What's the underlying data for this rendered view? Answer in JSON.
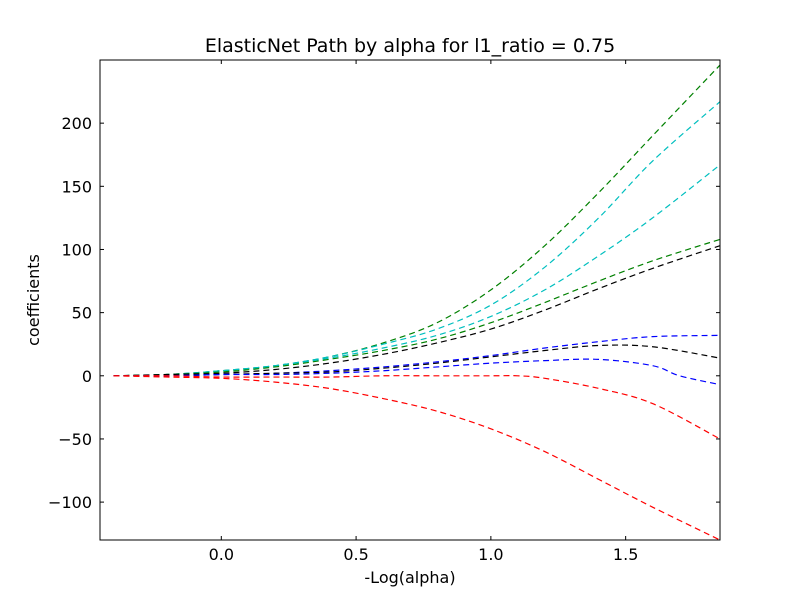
{
  "chart_data": {
    "type": "line",
    "title": "ElasticNet Path by alpha for l1_ratio = 0.75",
    "xlabel": "-Log(alpha)",
    "ylabel": "coefficients",
    "xlim": [
      -0.45,
      1.85
    ],
    "ylim": [
      -130,
      250
    ],
    "xticks": [
      0.0,
      0.5,
      1.0,
      1.5
    ],
    "xtick_labels": [
      "0.0",
      "0.5",
      "1.0",
      "1.5"
    ],
    "yticks": [
      -100,
      -50,
      0,
      50,
      100,
      150,
      200
    ],
    "ytick_labels": [
      "−100",
      "−50",
      "0",
      "50",
      "100",
      "150",
      "200"
    ],
    "grid": false,
    "legend": "none",
    "line_style": "dashed",
    "series": [
      {
        "color": "#008000",
        "x": [
          -0.4,
          -0.2,
          0.0,
          0.2,
          0.4,
          0.6,
          0.8,
          1.0,
          1.2,
          1.4,
          1.6,
          1.85
        ],
        "y": [
          0,
          1,
          4,
          8,
          15,
          26,
          42,
          68,
          103,
          145,
          190,
          246
        ]
      },
      {
        "color": "#00bfbf",
        "x": [
          -0.4,
          -0.2,
          0.0,
          0.2,
          0.4,
          0.6,
          0.8,
          1.0,
          1.2,
          1.4,
          1.6,
          1.85
        ],
        "y": [
          0,
          1,
          4,
          8,
          15,
          25,
          37,
          56,
          86,
          125,
          170,
          217
        ]
      },
      {
        "color": "#00bfbf",
        "x": [
          -0.4,
          -0.2,
          0.0,
          0.2,
          0.4,
          0.6,
          0.8,
          1.0,
          1.2,
          1.4,
          1.6,
          1.85
        ],
        "y": [
          0,
          1,
          4,
          8,
          14,
          22,
          32,
          47,
          68,
          95,
          125,
          167
        ]
      },
      {
        "color": "#008000",
        "x": [
          -0.4,
          -0.2,
          0.0,
          0.2,
          0.4,
          0.6,
          0.8,
          1.0,
          1.2,
          1.4,
          1.6,
          1.85
        ],
        "y": [
          0,
          1,
          3,
          7,
          13,
          20,
          29,
          42,
          58,
          75,
          91,
          108
        ]
      },
      {
        "color": "#000000",
        "x": [
          -0.4,
          -0.2,
          0.0,
          0.2,
          0.4,
          0.6,
          0.8,
          1.0,
          1.2,
          1.4,
          1.6,
          1.85
        ],
        "y": [
          0,
          1,
          2,
          5,
          10,
          17,
          26,
          37,
          52,
          69,
          85,
          103
        ]
      },
      {
        "color": "#0000ff",
        "x": [
          -0.4,
          -0.2,
          0.0,
          0.2,
          0.4,
          0.6,
          0.8,
          1.0,
          1.2,
          1.4,
          1.6,
          1.85
        ],
        "y": [
          0,
          0,
          1,
          2,
          4,
          7,
          11,
          16,
          22,
          27,
          31,
          32
        ]
      },
      {
        "color": "#000000",
        "x": [
          -0.4,
          -0.2,
          0.0,
          0.2,
          0.4,
          0.6,
          0.8,
          1.0,
          1.2,
          1.4,
          1.6,
          1.85
        ],
        "y": [
          0,
          0,
          1,
          2,
          3,
          6,
          10,
          15,
          20,
          24,
          23,
          14
        ]
      },
      {
        "color": "#0000ff",
        "x": [
          -0.4,
          -0.2,
          0.0,
          0.2,
          0.4,
          0.6,
          0.8,
          1.0,
          1.2,
          1.4,
          1.6,
          1.7,
          1.85
        ],
        "y": [
          0,
          0,
          1,
          1,
          2,
          4,
          7,
          10,
          12,
          13,
          8,
          0,
          -7
        ]
      },
      {
        "color": "#ff0000",
        "x": [
          -0.4,
          -0.2,
          0.0,
          0.2,
          0.4,
          0.6,
          0.8,
          1.0,
          1.1,
          1.2,
          1.4,
          1.6,
          1.85
        ],
        "y": [
          0,
          0,
          -1,
          -1,
          -1,
          0,
          0,
          0,
          0,
          -2,
          -10,
          -22,
          -50
        ]
      },
      {
        "color": "#ff0000",
        "x": [
          -0.4,
          -0.2,
          0.0,
          0.2,
          0.4,
          0.6,
          0.8,
          1.0,
          1.2,
          1.4,
          1.6,
          1.85
        ],
        "y": [
          0,
          -1,
          -2,
          -5,
          -10,
          -18,
          -28,
          -42,
          -60,
          -82,
          -104,
          -130
        ]
      }
    ]
  }
}
